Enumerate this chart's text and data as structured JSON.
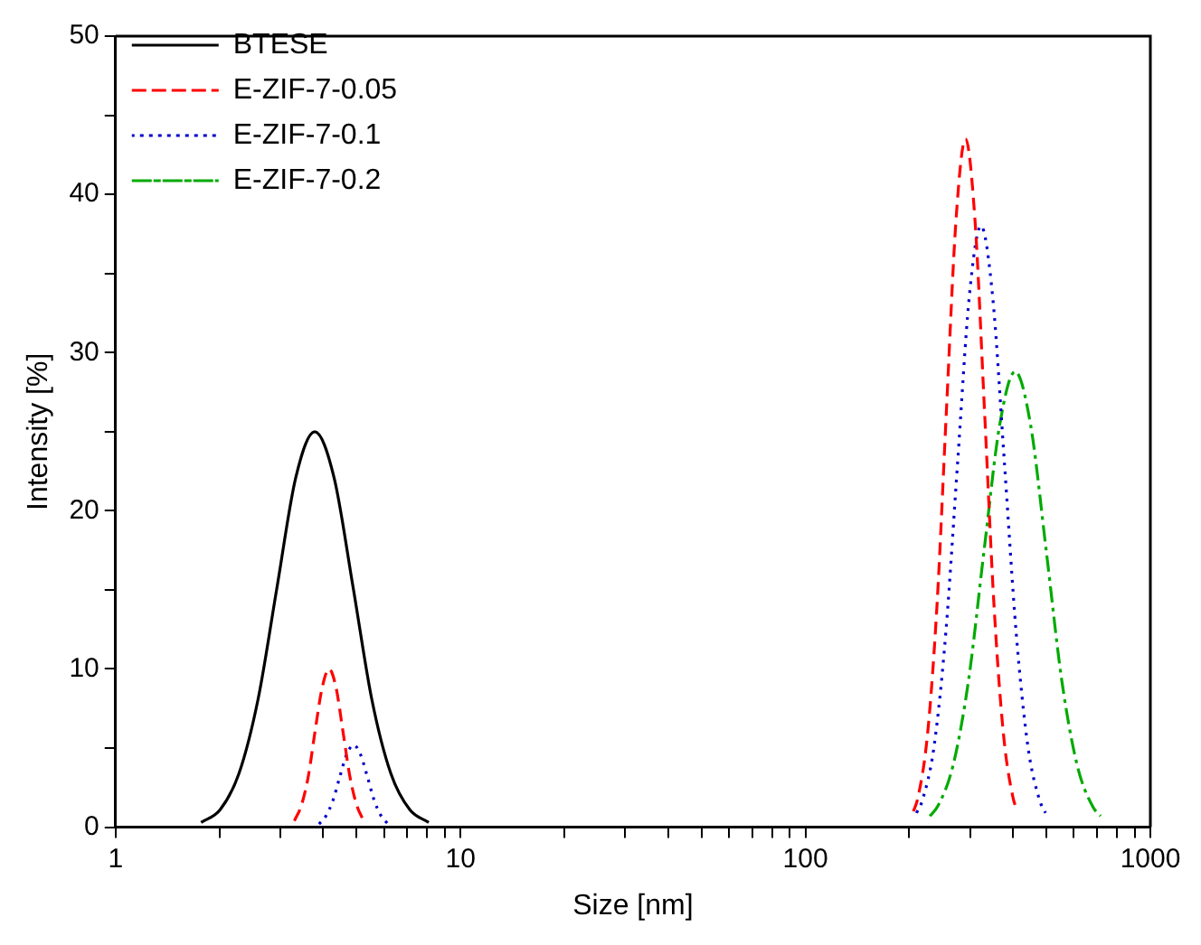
{
  "chart_data": {
    "type": "line",
    "xlabel": "Size [nm]",
    "ylabel": "Intensity [%]",
    "log": "x",
    "xlim": [
      1,
      1000
    ],
    "ylim": [
      0,
      50
    ],
    "xticks": [
      1,
      {
        "value": 2,
        "label": null
      },
      {
        "value": 3,
        "label": null
      },
      {
        "value": 4,
        "label": null
      },
      {
        "value": 5,
        "label": null
      },
      {
        "value": 6,
        "label": null
      },
      {
        "value": 7,
        "label": null
      },
      {
        "value": 8,
        "label": null
      },
      {
        "value": 9,
        "label": null
      },
      10,
      {
        "value": 20,
        "label": null
      },
      {
        "value": 30,
        "label": null
      },
      {
        "value": 40,
        "label": null
      },
      {
        "value": 50,
        "label": null
      },
      {
        "value": 60,
        "label": null
      },
      {
        "value": 70,
        "label": null
      },
      {
        "value": 80,
        "label": null
      },
      {
        "value": 90,
        "label": null
      },
      100,
      {
        "value": 200,
        "label": null
      },
      {
        "value": 300,
        "label": null
      },
      {
        "value": 400,
        "label": null
      },
      {
        "value": 500,
        "label": null
      },
      {
        "value": 600,
        "label": null
      },
      {
        "value": 700,
        "label": null
      },
      {
        "value": 800,
        "label": null
      },
      {
        "value": 900,
        "label": null
      },
      1000
    ],
    "yticks": [
      0,
      {
        "value": 5,
        "label": null
      },
      10,
      {
        "value": 15,
        "label": null
      },
      20,
      {
        "value": 25,
        "label": null
      },
      30,
      {
        "value": 35,
        "label": null
      },
      40,
      {
        "value": 45,
        "label": null
      },
      50
    ],
    "grid": false,
    "legend": "top left",
    "marker": "none",
    "series": [
      {
        "name": "BTESE",
        "color": "#000000",
        "line_style": "solid",
        "x": [
          1.77,
          2.01,
          2.28,
          2.59,
          2.94,
          3.33,
          3.78,
          4.3,
          4.88,
          5.53,
          6.28,
          7.13,
          8.09
        ],
        "values": [
          0.3,
          1.1,
          3.4,
          8.1,
          15.2,
          22.1,
          25.0,
          22.1,
          15.2,
          8.1,
          3.4,
          1.1,
          0.3
        ]
      },
      {
        "name": "E-ZIF-7-0.05",
        "color": "#ff0000",
        "line_style": "dashed",
        "x": [
          3.3,
          3.46,
          3.62,
          3.79,
          3.97,
          4.16,
          4.36,
          4.56,
          4.78,
          5.0,
          5.24,
          30,
          205.6,
          212.1,
          226,
          240.8,
          256.4,
          273.3,
          291.1,
          310.1,
          330.4,
          352,
          375,
          399.5,
          412
        ],
        "values": [
          0.4,
          1.4,
          3.2,
          6.1,
          8.8,
          10.0,
          8.8,
          6.1,
          3.2,
          1.4,
          0.4,
          null,
          1.0,
          1.9,
          5.9,
          14.1,
          26.4,
          38.4,
          43.5,
          38.4,
          26.4,
          14.1,
          5.9,
          1.9,
          1.0
        ]
      },
      {
        "name": "E-ZIF-7-0.1",
        "color": "#0000cc",
        "line_style": "dotted",
        "x": [
          3.89,
          4.07,
          4.27,
          4.47,
          4.68,
          4.9,
          5.13,
          5.37,
          5.62,
          5.89,
          6.17,
          30,
          209.9,
          218.3,
          236.0,
          255.3,
          276.1,
          298.5,
          322.8,
          349.1,
          377.6,
          408.3,
          441.6,
          477.5,
          496.5
        ],
        "values": [
          0.2,
          0.7,
          1.7,
          3.2,
          4.6,
          5.2,
          4.6,
          3.2,
          1.7,
          0.7,
          0.2,
          null,
          0.9,
          1.7,
          5.1,
          12.3,
          23.0,
          33.5,
          38.0,
          33.5,
          23.0,
          12.3,
          5.1,
          1.7,
          0.9
        ]
      },
      {
        "name": "E-ZIF-7-0.2",
        "color": "#00aa00",
        "line_style": "dashdot",
        "x": [
          229.4,
          241.5,
          267.9,
          297.2,
          329.6,
          365.6,
          405.5,
          449.8,
          498.9,
          553.4,
          613.8,
          680.8,
          717.2
        ],
        "values": [
          0.7,
          1.3,
          3.9,
          9.3,
          17.5,
          25.4,
          28.8,
          25.4,
          17.5,
          9.3,
          3.9,
          1.3,
          0.7
        ]
      }
    ]
  }
}
